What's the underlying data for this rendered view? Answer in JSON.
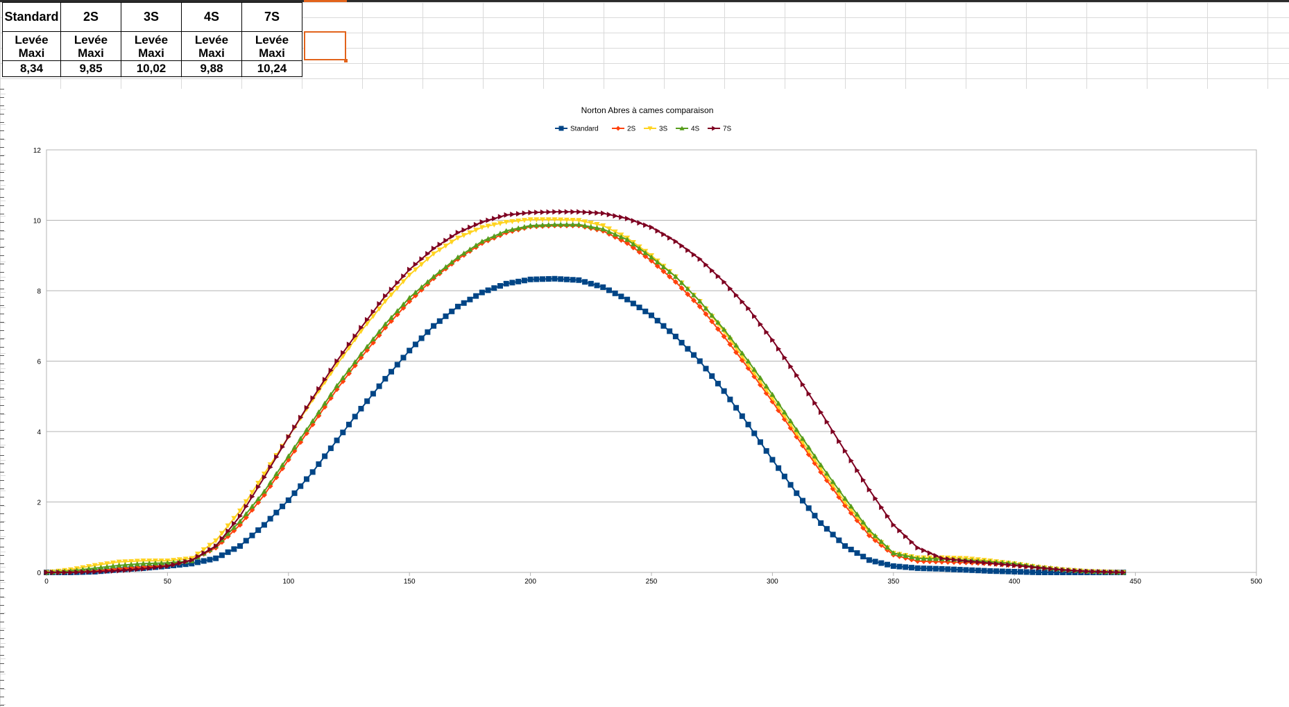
{
  "table": {
    "headers": [
      "Standard",
      "2S",
      "3S",
      "4S",
      "7S"
    ],
    "sub_label_line1": "Levée",
    "sub_label_line2": "Maxi",
    "values": [
      "8,34",
      "9,85",
      "10,02",
      "9,88",
      "10,24"
    ]
  },
  "chart_data": {
    "type": "line",
    "title": "Norton Abres à cames comparaison",
    "xlabel": "",
    "ylabel": "",
    "xlim": [
      0,
      500
    ],
    "ylim": [
      0,
      12
    ],
    "x_ticks": [
      "0",
      "50",
      "100",
      "150",
      "200",
      "250",
      "300",
      "350",
      "400",
      "450",
      "500"
    ],
    "y_ticks": [
      "0",
      "2",
      "4",
      "6",
      "8",
      "10",
      "12"
    ],
    "grid": "horizontal",
    "legend_position": "top",
    "series": [
      {
        "name": "Standard",
        "color": "#004586",
        "marker": "square",
        "x": [
          0,
          10,
          20,
          30,
          40,
          50,
          60,
          70,
          80,
          90,
          100,
          110,
          120,
          130,
          140,
          150,
          160,
          170,
          180,
          190,
          200,
          210,
          220,
          230,
          240,
          250,
          260,
          270,
          280,
          290,
          300,
          310,
          320,
          330,
          340,
          350,
          360,
          370,
          380,
          390,
          400,
          410,
          420,
          430,
          440,
          445
        ],
        "y": [
          0,
          0,
          0.02,
          0.08,
          0.12,
          0.18,
          0.25,
          0.4,
          0.75,
          1.35,
          2.05,
          2.85,
          3.75,
          4.65,
          5.5,
          6.3,
          7.0,
          7.55,
          7.95,
          8.2,
          8.32,
          8.34,
          8.3,
          8.1,
          7.75,
          7.3,
          6.7,
          6.0,
          5.15,
          4.2,
          3.2,
          2.25,
          1.4,
          0.75,
          0.35,
          0.18,
          0.12,
          0.1,
          0.07,
          0.04,
          0.02,
          0,
          0,
          0,
          0,
          0
        ]
      },
      {
        "name": "2S",
        "color": "#ff420e",
        "marker": "diamond",
        "x": [
          0,
          10,
          20,
          30,
          40,
          50,
          60,
          70,
          80,
          90,
          100,
          110,
          120,
          130,
          140,
          150,
          160,
          170,
          180,
          190,
          200,
          210,
          220,
          230,
          240,
          250,
          260,
          270,
          280,
          290,
          300,
          310,
          320,
          330,
          340,
          350,
          360,
          370,
          380,
          390,
          400,
          410,
          420,
          430,
          440,
          445
        ],
        "y": [
          0,
          0.02,
          0.05,
          0.1,
          0.15,
          0.2,
          0.35,
          0.7,
          1.35,
          2.2,
          3.2,
          4.2,
          5.2,
          6.1,
          6.95,
          7.7,
          8.35,
          8.9,
          9.35,
          9.65,
          9.82,
          9.85,
          9.85,
          9.7,
          9.35,
          8.85,
          8.25,
          7.55,
          6.7,
          5.8,
          4.85,
          3.85,
          2.85,
          1.9,
          1.05,
          0.5,
          0.32,
          0.3,
          0.28,
          0.25,
          0.2,
          0.15,
          0.08,
          0.03,
          0.01,
          0
        ]
      },
      {
        "name": "3S",
        "color": "#ffd320",
        "marker": "triangle-down",
        "x": [
          0,
          10,
          20,
          30,
          40,
          50,
          60,
          70,
          80,
          90,
          100,
          110,
          120,
          130,
          140,
          150,
          160,
          170,
          180,
          190,
          200,
          210,
          220,
          230,
          240,
          250,
          260,
          270,
          280,
          290,
          300,
          310,
          320,
          330,
          340,
          350,
          360,
          370,
          380,
          390,
          400,
          410,
          420,
          430,
          440,
          445
        ],
        "y": [
          0,
          0.08,
          0.2,
          0.3,
          0.33,
          0.33,
          0.4,
          0.9,
          1.75,
          2.8,
          3.85,
          4.9,
          5.9,
          6.85,
          7.7,
          8.45,
          9.05,
          9.5,
          9.8,
          9.95,
          10.02,
          10.02,
          10.0,
          9.85,
          9.5,
          9.0,
          8.4,
          7.7,
          6.85,
          5.9,
          4.95,
          3.95,
          2.95,
          2.0,
          1.15,
          0.55,
          0.42,
          0.42,
          0.4,
          0.33,
          0.25,
          0.15,
          0.08,
          0.03,
          0.01,
          0
        ]
      },
      {
        "name": "4S",
        "color": "#579d1c",
        "marker": "triangle-up",
        "x": [
          0,
          10,
          20,
          30,
          40,
          50,
          60,
          70,
          80,
          90,
          100,
          110,
          120,
          130,
          140,
          150,
          160,
          170,
          180,
          190,
          200,
          210,
          220,
          230,
          240,
          250,
          260,
          270,
          280,
          290,
          300,
          310,
          320,
          330,
          340,
          350,
          360,
          370,
          380,
          390,
          400,
          410,
          420,
          430,
          440,
          445
        ],
        "y": [
          0,
          0.04,
          0.12,
          0.2,
          0.25,
          0.27,
          0.33,
          0.75,
          1.45,
          2.3,
          3.3,
          4.3,
          5.3,
          6.2,
          7.05,
          7.8,
          8.4,
          8.95,
          9.4,
          9.7,
          9.85,
          9.88,
          9.88,
          9.75,
          9.45,
          8.95,
          8.4,
          7.7,
          6.9,
          6.0,
          5.05,
          4.05,
          3.05,
          2.1,
          1.2,
          0.55,
          0.4,
          0.38,
          0.35,
          0.3,
          0.25,
          0.15,
          0.08,
          0.03,
          0.01,
          0
        ]
      },
      {
        "name": "7S",
        "color": "#7e0021",
        "marker": "triangle-right",
        "x": [
          0,
          10,
          20,
          30,
          40,
          50,
          60,
          70,
          80,
          90,
          100,
          110,
          120,
          130,
          140,
          150,
          160,
          170,
          180,
          190,
          200,
          210,
          220,
          230,
          240,
          250,
          260,
          270,
          280,
          290,
          300,
          310,
          320,
          330,
          340,
          350,
          360,
          370,
          380,
          390,
          400,
          410,
          420,
          430,
          440,
          445
        ],
        "y": [
          0,
          0,
          0.02,
          0.05,
          0.1,
          0.18,
          0.35,
          0.75,
          1.6,
          2.7,
          3.85,
          4.95,
          6.0,
          6.95,
          7.85,
          8.6,
          9.2,
          9.65,
          9.95,
          10.15,
          10.22,
          10.24,
          10.24,
          10.2,
          10.05,
          9.8,
          9.4,
          8.9,
          8.25,
          7.5,
          6.6,
          5.6,
          4.55,
          3.45,
          2.35,
          1.35,
          0.7,
          0.4,
          0.32,
          0.26,
          0.2,
          0.13,
          0.07,
          0.03,
          0.01,
          0
        ]
      }
    ]
  }
}
